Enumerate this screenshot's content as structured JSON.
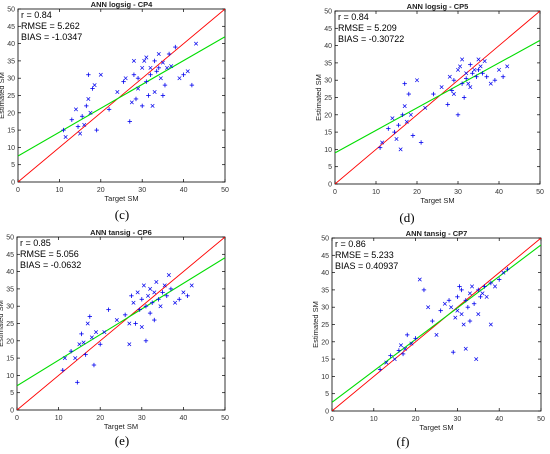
{
  "colors": {
    "identity_line": "#ff0000",
    "fit_line": "#00dd00",
    "markers": "#0000ee",
    "axes": "#000000"
  },
  "chart_data": [
    {
      "type": "scatter",
      "title": "ANN logsig - CP4",
      "xlabel": "Target SM",
      "ylabel": "Estimated SM",
      "xlim": [
        0,
        50
      ],
      "ylim": [
        0,
        50
      ],
      "xticks": [
        0,
        10,
        20,
        30,
        40,
        50
      ],
      "yticks": [
        0,
        5,
        10,
        15,
        20,
        25,
        30,
        35,
        40,
        45,
        50
      ],
      "grid": false,
      "stats": [
        "r = 0.84",
        "RMSE = 5.262",
        "BIAS = -1.0347"
      ],
      "panel_label": "(c)",
      "identity_line": [
        [
          0,
          0
        ],
        [
          50,
          50
        ]
      ],
      "fit_line": [
        [
          0,
          7.5
        ],
        [
          50,
          42
        ]
      ],
      "points": [
        [
          11,
          15
        ],
        [
          11.5,
          13
        ],
        [
          13,
          18
        ],
        [
          14,
          21
        ],
        [
          14.5,
          16
        ],
        [
          15,
          14
        ],
        [
          15.5,
          19
        ],
        [
          16,
          16.5
        ],
        [
          16.5,
          22
        ],
        [
          17,
          24
        ],
        [
          17,
          31
        ],
        [
          17.5,
          20
        ],
        [
          18,
          27
        ],
        [
          18.5,
          28
        ],
        [
          19,
          15
        ],
        [
          20,
          31
        ],
        [
          22,
          21
        ],
        [
          24,
          26
        ],
        [
          25.5,
          29
        ],
        [
          26,
          30
        ],
        [
          27,
          17.5
        ],
        [
          27.5,
          23
        ],
        [
          28,
          31
        ],
        [
          28,
          35
        ],
        [
          28.5,
          24
        ],
        [
          29,
          27
        ],
        [
          29,
          30
        ],
        [
          30,
          33
        ],
        [
          30,
          22
        ],
        [
          30.5,
          35
        ],
        [
          31,
          29
        ],
        [
          31,
          36
        ],
        [
          31.5,
          25
        ],
        [
          32,
          33
        ],
        [
          32,
          31
        ],
        [
          32.5,
          22
        ],
        [
          33,
          35
        ],
        [
          33,
          26
        ],
        [
          33.5,
          32
        ],
        [
          34,
          37
        ],
        [
          34,
          33
        ],
        [
          34.5,
          30
        ],
        [
          35,
          25
        ],
        [
          35,
          34.5
        ],
        [
          35.5,
          28
        ],
        [
          36,
          33
        ],
        [
          36.5,
          37
        ],
        [
          37,
          33.5
        ],
        [
          38,
          39
        ],
        [
          39,
          30
        ],
        [
          40,
          31
        ],
        [
          41,
          32
        ],
        [
          42,
          28
        ],
        [
          43,
          40
        ]
      ]
    },
    {
      "type": "scatter",
      "title": "ANN logsig - CP5",
      "xlabel": "Target SM",
      "ylabel": "Estimated SM",
      "xlim": [
        0,
        50
      ],
      "ylim": [
        0,
        50
      ],
      "xticks": [
        0,
        10,
        20,
        30,
        40,
        50
      ],
      "yticks": [
        0,
        5,
        10,
        15,
        20,
        25,
        30,
        35,
        40,
        45,
        50
      ],
      "grid": false,
      "stats": [
        "r = 0.84",
        "RMSE = 5.209",
        "BIAS = -0.30722"
      ],
      "panel_label": "(d)",
      "identity_line": [
        [
          0,
          0
        ],
        [
          50,
          50
        ]
      ],
      "fit_line": [
        [
          0,
          9
        ],
        [
          50,
          41.5
        ]
      ],
      "points": [
        [
          11,
          10.5
        ],
        [
          11.5,
          12
        ],
        [
          13,
          16
        ],
        [
          14,
          19
        ],
        [
          14.5,
          15
        ],
        [
          15,
          13
        ],
        [
          15.5,
          17
        ],
        [
          16,
          10
        ],
        [
          16.5,
          20
        ],
        [
          17,
          22.5
        ],
        [
          17,
          29
        ],
        [
          17.5,
          18
        ],
        [
          18,
          26
        ],
        [
          18.5,
          20
        ],
        [
          19,
          14
        ],
        [
          20,
          30
        ],
        [
          21,
          12
        ],
        [
          22,
          22
        ],
        [
          24,
          26
        ],
        [
          26,
          28
        ],
        [
          27.5,
          23
        ],
        [
          28,
          31
        ],
        [
          28.5,
          27
        ],
        [
          29,
          26
        ],
        [
          29,
          30
        ],
        [
          30,
          33
        ],
        [
          30,
          20
        ],
        [
          30.5,
          34
        ],
        [
          31,
          29
        ],
        [
          31,
          36
        ],
        [
          31.5,
          25
        ],
        [
          32,
          32
        ],
        [
          32,
          30.5
        ],
        [
          32.5,
          29
        ],
        [
          33,
          34.5
        ],
        [
          33,
          28
        ],
        [
          33.5,
          32
        ],
        [
          34,
          33
        ],
        [
          34.5,
          31
        ],
        [
          35,
          36
        ],
        [
          35,
          33
        ],
        [
          35.5,
          34
        ],
        [
          36,
          32
        ],
        [
          36.5,
          35.5
        ],
        [
          37,
          31
        ],
        [
          38,
          29
        ],
        [
          39,
          30
        ],
        [
          40,
          33
        ],
        [
          41,
          31
        ],
        [
          42,
          34
        ]
      ]
    },
    {
      "type": "scatter",
      "title": "ANN tansig - CP6",
      "xlabel": "Target SM",
      "ylabel": "Estimated SM",
      "xlim": [
        0,
        50
      ],
      "ylim": [
        0,
        50
      ],
      "xticks": [
        0,
        10,
        20,
        30,
        40,
        50
      ],
      "yticks": [
        0,
        5,
        10,
        15,
        20,
        25,
        30,
        35,
        40,
        45,
        50
      ],
      "grid": false,
      "stats": [
        "r = 0.85",
        "RMSE = 5.056",
        "BIAS = -0.0632"
      ],
      "panel_label": "(e)",
      "identity_line": [
        [
          0,
          0
        ],
        [
          50,
          50
        ]
      ],
      "fit_line": [
        [
          0,
          7
        ],
        [
          50,
          44
        ]
      ],
      "points": [
        [
          11,
          11.5
        ],
        [
          11.5,
          15
        ],
        [
          13,
          17
        ],
        [
          14,
          15
        ],
        [
          14.5,
          8
        ],
        [
          15,
          19
        ],
        [
          15.5,
          22
        ],
        [
          16,
          19.5
        ],
        [
          16.5,
          16
        ],
        [
          17,
          25
        ],
        [
          17.5,
          27
        ],
        [
          18,
          21
        ],
        [
          18.5,
          13
        ],
        [
          19,
          22.5
        ],
        [
          20,
          19
        ],
        [
          21,
          22.5
        ],
        [
          22,
          29
        ],
        [
          24,
          26
        ],
        [
          26,
          27.5
        ],
        [
          27,
          25
        ],
        [
          27.5,
          33
        ],
        [
          28,
          31
        ],
        [
          28.5,
          25
        ],
        [
          29,
          34
        ],
        [
          29.5,
          29
        ],
        [
          30,
          24
        ],
        [
          30,
          32
        ],
        [
          30.5,
          36
        ],
        [
          31,
          30
        ],
        [
          31.5,
          33
        ],
        [
          32,
          28
        ],
        [
          32,
          35
        ],
        [
          32.5,
          31
        ],
        [
          33,
          34
        ],
        [
          33,
          26
        ],
        [
          33.5,
          37
        ],
        [
          34,
          32
        ],
        [
          34.5,
          30
        ],
        [
          35,
          34
        ],
        [
          35.5,
          36
        ],
        [
          36,
          33
        ],
        [
          36.5,
          39
        ],
        [
          37,
          35
        ],
        [
          38,
          31
        ],
        [
          39,
          32
        ],
        [
          40,
          34
        ],
        [
          41,
          33
        ],
        [
          42,
          36
        ],
        [
          31,
          20
        ],
        [
          27,
          19
        ]
      ]
    },
    {
      "type": "scatter",
      "title": "ANN tansig - CP7",
      "xlabel": "Target SM",
      "ylabel": "Estimated SM",
      "xlim": [
        0,
        50
      ],
      "ylim": [
        0,
        50
      ],
      "xticks": [
        0,
        10,
        20,
        30,
        40,
        50
      ],
      "yticks": [
        0,
        5,
        10,
        15,
        20,
        25,
        30,
        35,
        40,
        45,
        50
      ],
      "grid": false,
      "stats": [
        "r = 0.86",
        "RMSE = 5.233",
        "BIAS = 0.40937"
      ],
      "panel_label": "(f)",
      "identity_line": [
        [
          0,
          0
        ],
        [
          50,
          50
        ]
      ],
      "fit_line": [
        [
          0,
          2.5
        ],
        [
          50,
          48
        ]
      ],
      "points": [
        [
          11.5,
          12
        ],
        [
          13,
          14
        ],
        [
          14,
          16
        ],
        [
          15,
          15
        ],
        [
          16,
          17.5
        ],
        [
          16.5,
          19
        ],
        [
          17,
          16.5
        ],
        [
          17.5,
          18
        ],
        [
          18,
          22
        ],
        [
          19,
          19.5
        ],
        [
          20,
          21
        ],
        [
          21,
          38
        ],
        [
          22,
          35
        ],
        [
          23,
          30
        ],
        [
          24,
          26
        ],
        [
          25,
          22
        ],
        [
          26,
          29
        ],
        [
          27,
          31
        ],
        [
          28,
          32
        ],
        [
          28.5,
          30
        ],
        [
          29,
          17
        ],
        [
          29.5,
          27
        ],
        [
          30,
          33
        ],
        [
          30,
          29
        ],
        [
          30.5,
          36
        ],
        [
          31,
          28
        ],
        [
          31,
          35
        ],
        [
          31.5,
          25
        ],
        [
          32,
          32
        ],
        [
          32,
          18
        ],
        [
          32.5,
          30
        ],
        [
          33,
          34
        ],
        [
          33,
          26
        ],
        [
          33.5,
          36
        ],
        [
          34,
          31
        ],
        [
          34.5,
          15
        ],
        [
          35,
          35
        ],
        [
          35,
          28
        ],
        [
          35.5,
          33
        ],
        [
          36,
          34
        ],
        [
          36.5,
          36
        ],
        [
          37,
          33
        ],
        [
          38,
          37
        ],
        [
          39,
          36
        ],
        [
          40,
          38
        ],
        [
          41,
          40
        ],
        [
          42,
          41
        ],
        [
          38,
          25
        ]
      ]
    }
  ]
}
